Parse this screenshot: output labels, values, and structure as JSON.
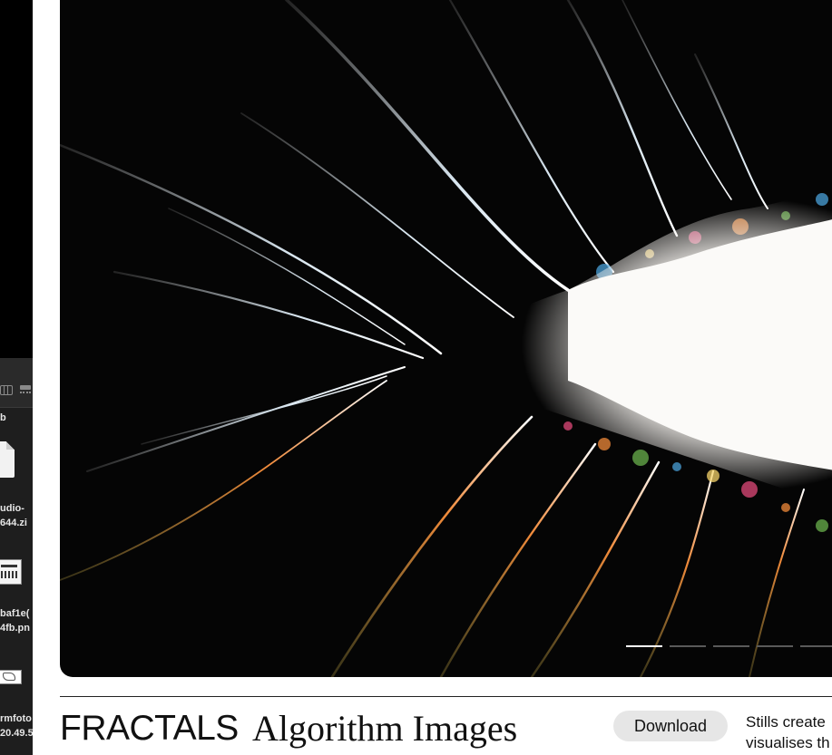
{
  "finder": {
    "path_label": "b",
    "files": [
      {
        "line1": "udio-",
        "line2": "644.zi"
      },
      {
        "line1": "baf1e(",
        "line2": "4fb.pn"
      },
      {
        "line1": "rmfoto",
        "line2": "20.49.5"
      }
    ],
    "icons": [
      "column-view-icon",
      "gallery-view-icon"
    ]
  },
  "hero": {
    "subject": "fractal",
    "colors": {
      "background": "#050505",
      "core": "#ffffff",
      "accents": [
        "#e04a7a",
        "#f08a3a",
        "#6ab04c",
        "#4aa0d8",
        "#f5d36a"
      ]
    },
    "pager": {
      "count": 7,
      "active_index": 0
    }
  },
  "caption": {
    "title": "FRACTALS",
    "subtitle": "Algorithm Images",
    "download_label": "Download",
    "description_line1": "Stills create",
    "description_line2": "visualises th"
  }
}
